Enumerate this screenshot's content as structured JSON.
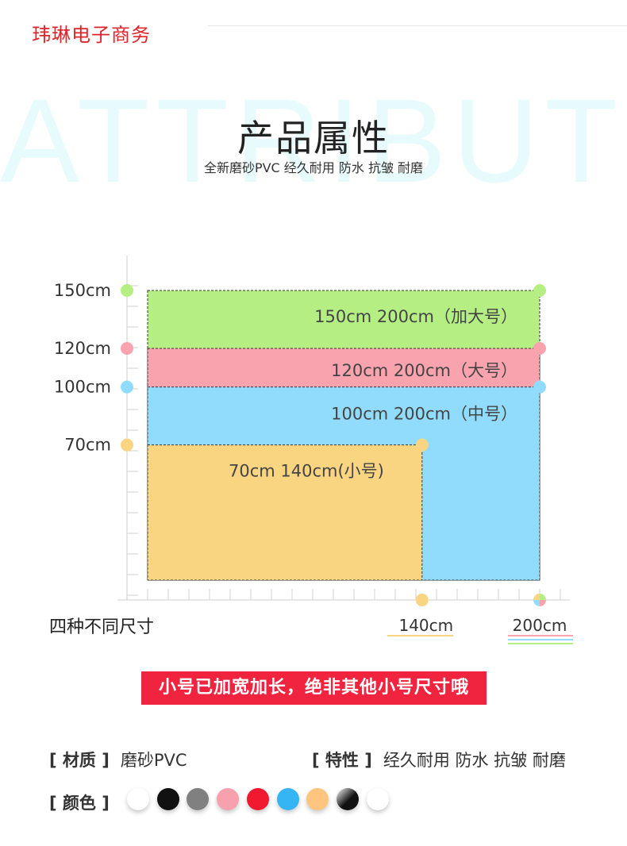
{
  "brand": "玮琳电子商务",
  "watermark": "ATTRIBUTE",
  "title": "产品属性",
  "subtitle": "全新磨砂PVC  经久耐用 防水 抗皱 耐磨",
  "chart_data": {
    "type": "size-diagram",
    "y_ticks": [
      {
        "label": "150cm",
        "value": 150,
        "color": "#b5ef84"
      },
      {
        "label": "120cm",
        "value": 120,
        "color": "#f8a3ad"
      },
      {
        "label": "100cm",
        "value": 100,
        "color": "#91dcfd"
      },
      {
        "label": "70cm",
        "value": 70,
        "color": "#f9d581"
      }
    ],
    "x_ticks": [
      {
        "label": "140cm",
        "value": 140,
        "color": "#f9d581"
      },
      {
        "label": "200cm",
        "value": 200,
        "color": "multi"
      }
    ],
    "sizes": [
      {
        "width": 200,
        "height": 150,
        "label": "150cm 200cm（加大号）",
        "color": "#b5ef84"
      },
      {
        "width": 200,
        "height": 120,
        "label": "120cm 200cm（大号）",
        "color": "#f8a3ad"
      },
      {
        "width": 200,
        "height": 100,
        "label": "100cm 200cm（中号）",
        "color": "#91dcfd"
      },
      {
        "width": 140,
        "height": 70,
        "label": "70cm 140cm(小号)",
        "color": "#f9d581"
      }
    ],
    "caption": "四种不同尺寸"
  },
  "banner": "小号已加宽加长，绝非其他小号尺寸哦",
  "attributes": {
    "material_key": "[ 材质 ]",
    "material_value": "磨砂PVC",
    "feature_key": "[ 特性 ]",
    "feature_value": "经久耐用 防水 抗皱 耐磨",
    "color_key": "[ 颜色 ]"
  },
  "colors": [
    "#ffffff",
    "#111111",
    "#808080",
    "#f7a1ae",
    "#f0192f",
    "#35b5f3",
    "#fdc57e",
    "gradient-black",
    "#ffffff"
  ]
}
